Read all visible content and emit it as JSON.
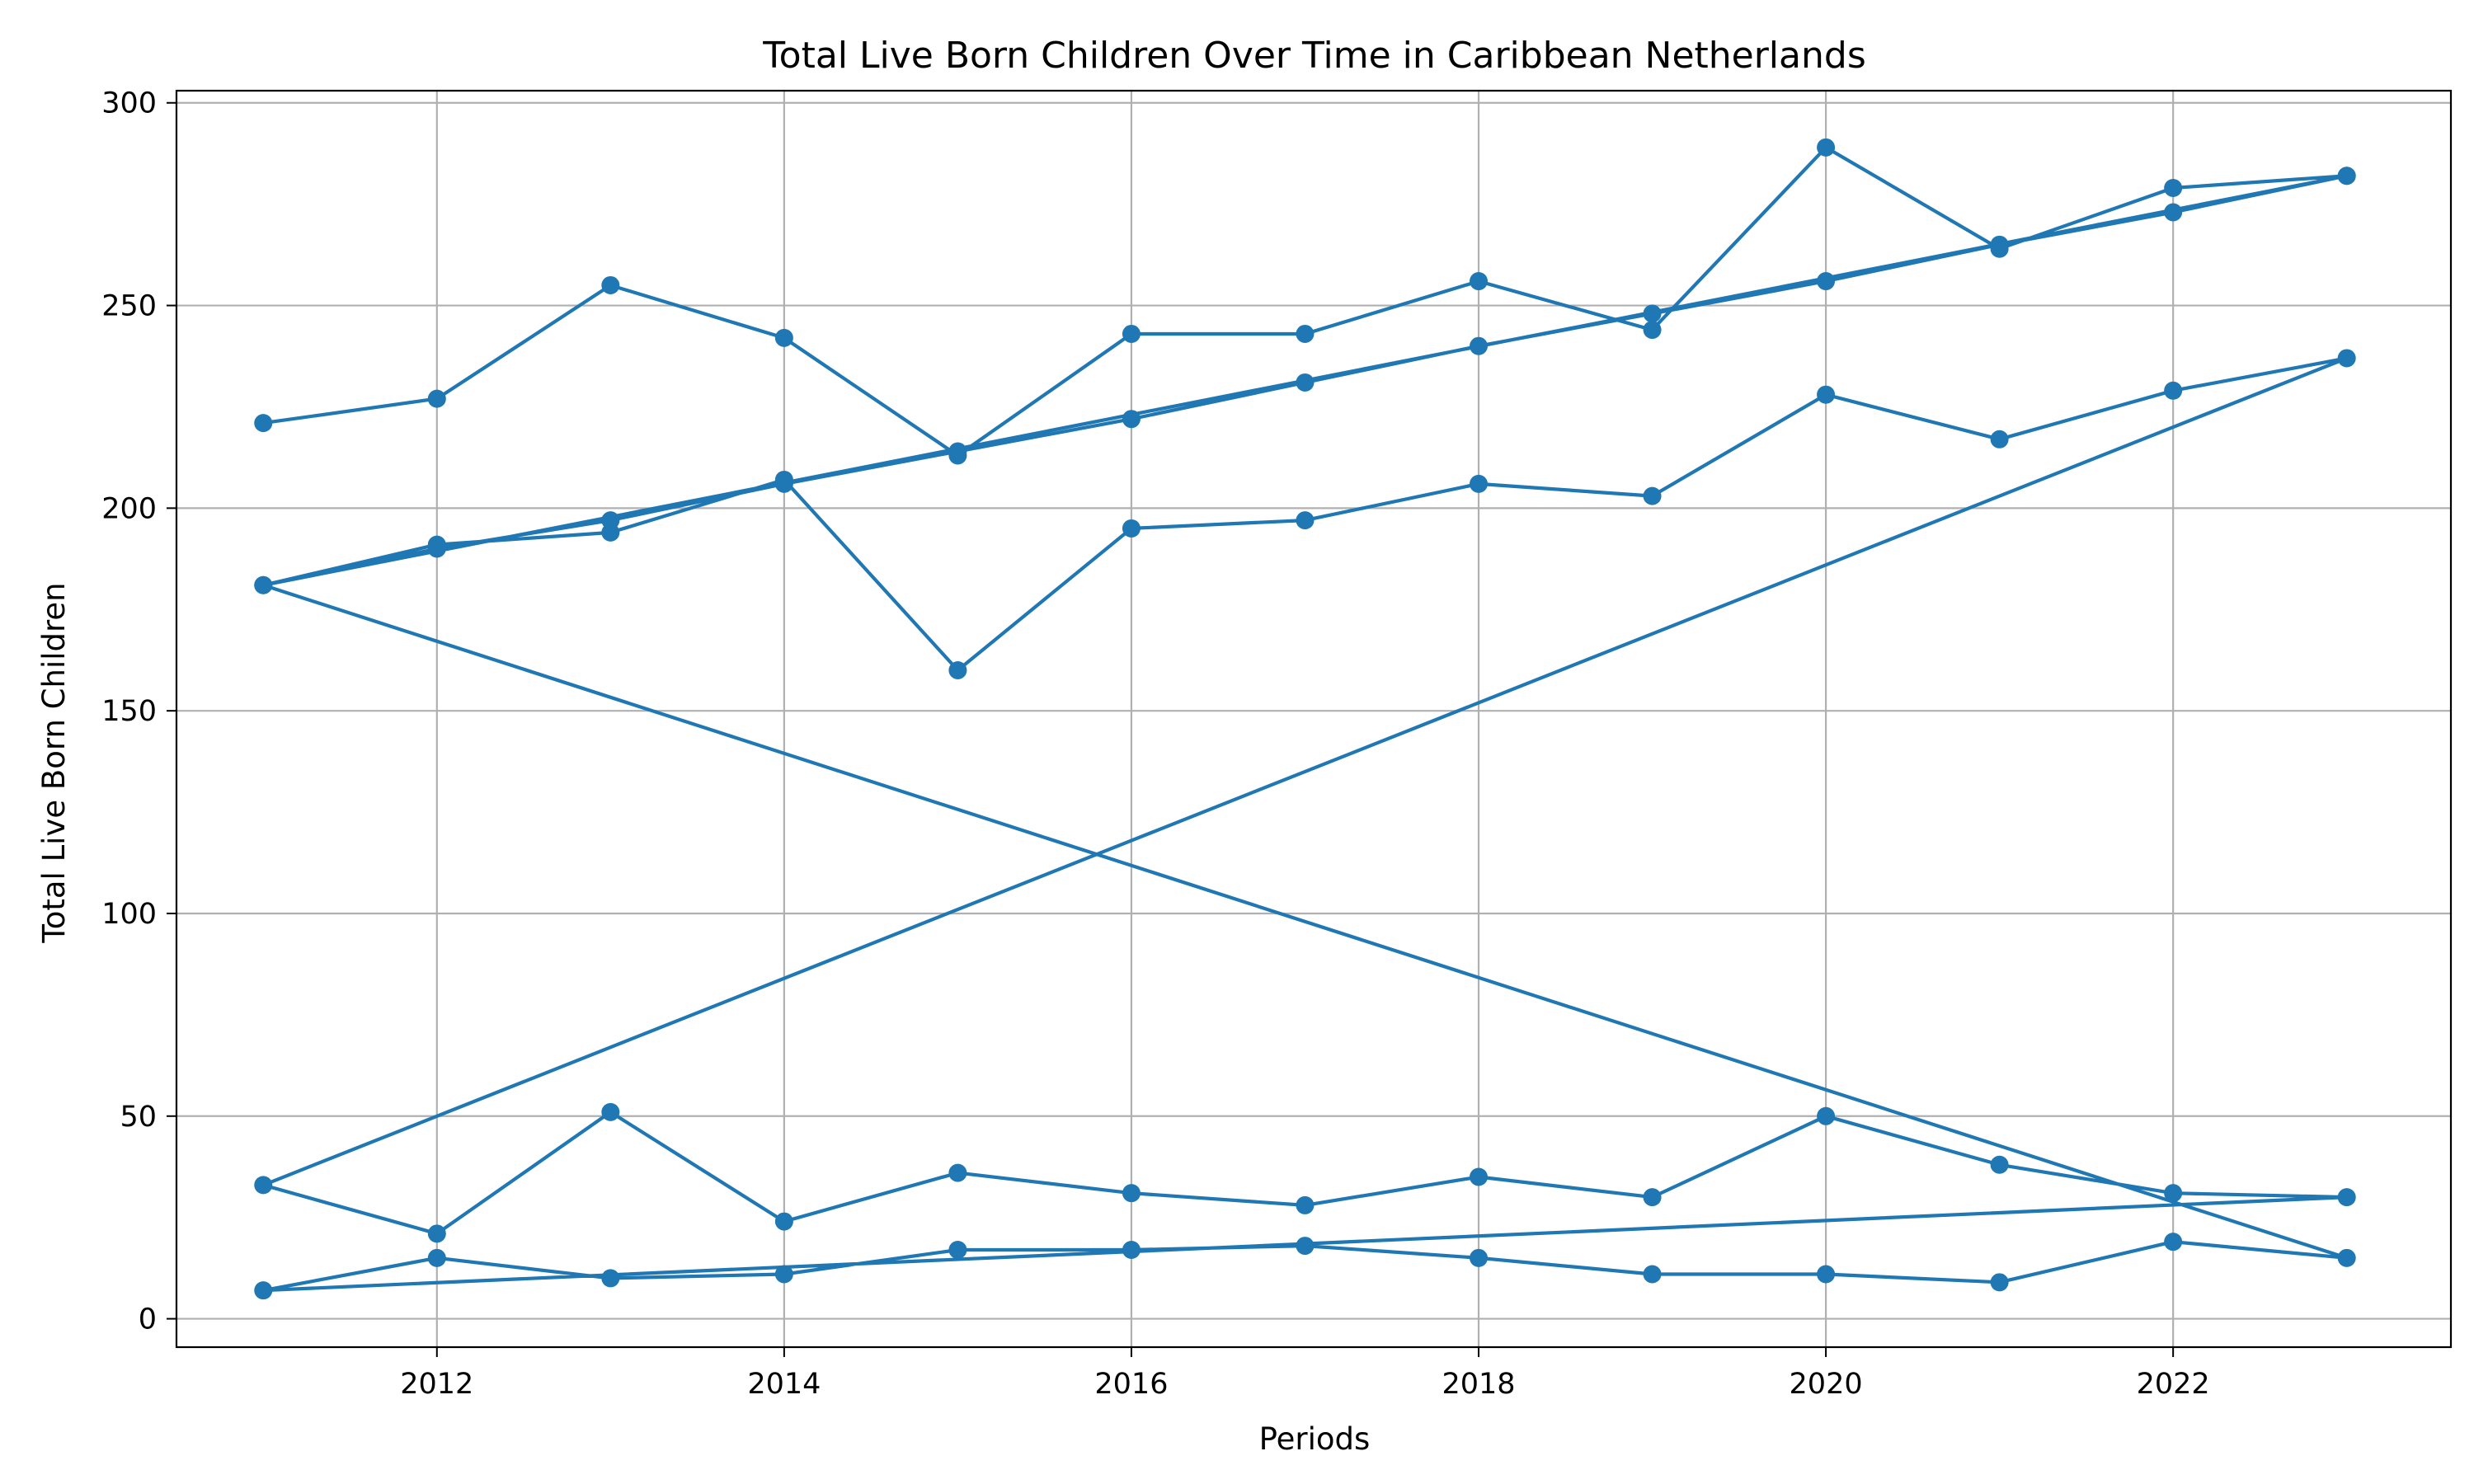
{
  "colors": {
    "series": "#1f77b4",
    "grid": "#b0b0b0",
    "background": "#ffffff"
  },
  "chart_data": {
    "type": "line",
    "title": "Total Live Born Children Over Time in Caribbean Netherlands",
    "xlabel": "Periods",
    "ylabel": "Total Live Born Children",
    "xlim": [
      2010.5,
      2023.6
    ],
    "ylim": [
      -7,
      303
    ],
    "xticks": [
      2012,
      2014,
      2016,
      2018,
      2020,
      2022
    ],
    "yticks": [
      0,
      50,
      100,
      150,
      200,
      250,
      300
    ],
    "grid": true,
    "marker": "circle",
    "series": [
      {
        "x": [
          2011,
          2012,
          2013,
          2014,
          2015,
          2016,
          2017,
          2018,
          2019,
          2020,
          2021,
          2022,
          2023,
          2011,
          2012,
          2013,
          2014,
          2015,
          2016,
          2017,
          2018,
          2019,
          2020,
          2021,
          2022,
          2023,
          2011,
          2012,
          2013,
          2014,
          2015,
          2016,
          2017,
          2018,
          2019,
          2020,
          2021,
          2022,
          2023,
          2011,
          2012,
          2013,
          2014,
          2015,
          2016,
          2017,
          2018,
          2019,
          2020,
          2021,
          2022,
          2023,
          2011,
          2012,
          2013,
          2014,
          2015,
          2016,
          2017,
          2018,
          2019,
          2020,
          2021,
          2022,
          2023
        ],
        "y": [
          221,
          227,
          255,
          242,
          213,
          243,
          243,
          256,
          244,
          289,
          264,
          279,
          282,
          181,
          191,
          194,
          207,
          160,
          195,
          197,
          206,
          203,
          228,
          217,
          229,
          237,
          33,
          21,
          51,
          24,
          36,
          31,
          28,
          35,
          30,
          50,
          38,
          31,
          30,
          7,
          15,
          10,
          11,
          17,
          17,
          18,
          15,
          11,
          11,
          9,
          19,
          15,
          181,
          190,
          197,
          206,
          214,
          222,
          231,
          240,
          248,
          256,
          265,
          273,
          282
        ]
      }
    ]
  }
}
